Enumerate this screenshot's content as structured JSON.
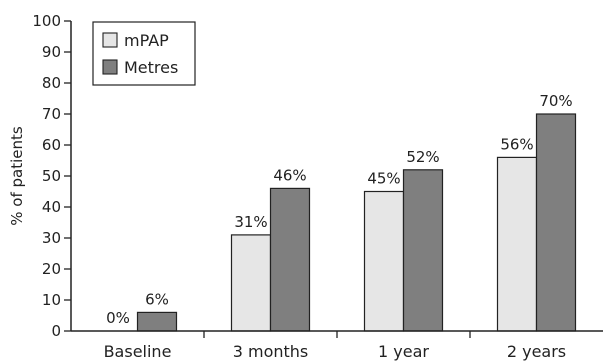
{
  "chart_data": {
    "type": "bar",
    "categories": [
      "Baseline",
      "3 months",
      "1 year",
      "2 years"
    ],
    "series": [
      {
        "name": "mPAP",
        "values": [
          0,
          31,
          45,
          56
        ],
        "labels": [
          "0%",
          "31%",
          "45%",
          "56%"
        ],
        "color": "#e6e6e6"
      },
      {
        "name": "Metres",
        "values": [
          6,
          46,
          52,
          70
        ],
        "labels": [
          "6%",
          "46%",
          "52%",
          "70%"
        ],
        "color": "#7f7f7f"
      }
    ],
    "ylabel": "% of patients",
    "xlabel": "",
    "ylim": [
      0,
      100
    ],
    "yticks": [
      0,
      10,
      20,
      30,
      40,
      50,
      60,
      70,
      80,
      90,
      100
    ],
    "grid": false,
    "legend_position": "top-left"
  }
}
